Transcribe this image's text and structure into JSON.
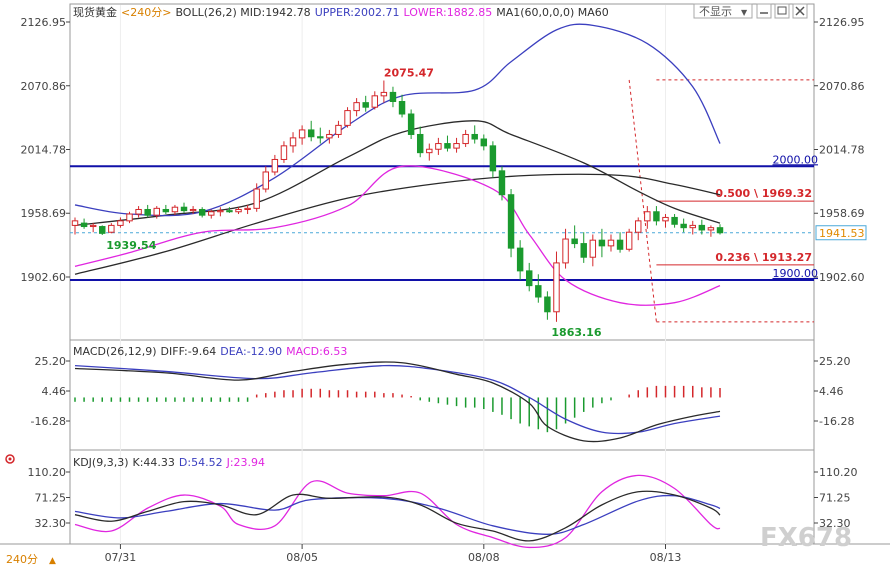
{
  "colors": {
    "up": "#d4272b",
    "down": "#1a9a2e",
    "upper": "#3b3fbf",
    "mid": "#2a2a2a",
    "lower": "#e026e0",
    "ma": "#2a2a2a",
    "level": "#1010a8",
    "axis": "#444444",
    "cur": "#4aa8d8",
    "fib": "#d4272b",
    "dif": "#2a2a2a",
    "dea": "#3b3fbf",
    "k": "#2a2a2a",
    "d": "#3b3fbf",
    "j": "#e026e0"
  },
  "header": {
    "main": [
      {
        "t": "现货黄金",
        "c": "#333333"
      },
      {
        "t": "<240分>",
        "c": "#d88000"
      },
      {
        "t": "BOLL(26,2) MID:1942.78",
        "c": "#333333"
      },
      {
        "t": "UPPER:2002.71",
        "c": "#3b3fbf"
      },
      {
        "t": "LOWER:1882.85",
        "c": "#e026e0"
      },
      {
        "t": "MA1(60,0,0,0) MA60",
        "c": "#333333"
      }
    ],
    "macd": [
      {
        "t": "MACD(26,12,9)",
        "c": "#333333"
      },
      {
        "t": "DIFF:-9.64",
        "c": "#333333"
      },
      {
        "t": "DEA:-12.90",
        "c": "#3b3fbf"
      },
      {
        "t": "MACD:6.53",
        "c": "#e026e0"
      }
    ],
    "kdj": [
      {
        "t": "KDJ(9,3,3)",
        "c": "#333333"
      },
      {
        "t": "K:44.33",
        "c": "#333333"
      },
      {
        "t": "D:54.52",
        "c": "#3b3fbf"
      },
      {
        "t": "J:23.94",
        "c": "#e026e0"
      }
    ]
  },
  "toolbar": {
    "hide_label": "不显示"
  },
  "footer": {
    "period_label": "240分"
  },
  "watermark": "FX678",
  "chart_data": [
    {
      "panel": "main",
      "type": "candlestick",
      "y_ticks": [
        2126.95,
        2070.86,
        2014.78,
        1958.69,
        1902.6
      ],
      "x_labels": [
        {
          "label": "07/31",
          "i": 5
        },
        {
          "label": "08/05",
          "i": 25
        },
        {
          "label": "08/08",
          "i": 45
        },
        {
          "label": "08/13",
          "i": 65
        }
      ],
      "ohlc": [
        [
          1948,
          1955,
          1940,
          1952
        ],
        [
          1950,
          1954,
          1945,
          1947
        ],
        [
          1947,
          1950,
          1942,
          1948
        ],
        [
          1947,
          1948,
          1939.54,
          1941
        ],
        [
          1942,
          1950,
          1941,
          1948
        ],
        [
          1948,
          1955,
          1946,
          1952
        ],
        [
          1952,
          1960,
          1950,
          1958
        ],
        [
          1958,
          1965,
          1955,
          1962
        ],
        [
          1962,
          1966,
          1955,
          1957
        ],
        [
          1957,
          1965,
          1954,
          1963
        ],
        [
          1962,
          1966,
          1958,
          1960
        ],
        [
          1960,
          1966,
          1957,
          1964
        ],
        [
          1964,
          1968,
          1959,
          1961
        ],
        [
          1961,
          1965,
          1958,
          1962
        ],
        [
          1962,
          1964,
          1955,
          1957
        ],
        [
          1957,
          1962,
          1954,
          1960
        ],
        [
          1960,
          1964,
          1956,
          1961
        ],
        [
          1961,
          1964,
          1959,
          1960
        ],
        [
          1960,
          1964,
          1958,
          1962
        ],
        [
          1962,
          1966,
          1958,
          1963
        ],
        [
          1963,
          1985,
          1960,
          1980
        ],
        [
          1980,
          2000,
          1977,
          1995
        ],
        [
          1995,
          2010,
          1992,
          2006
        ],
        [
          2006,
          2022,
          2003,
          2018
        ],
        [
          2018,
          2030,
          2012,
          2025
        ],
        [
          2025,
          2036,
          2019,
          2032
        ],
        [
          2032,
          2040,
          2022,
          2026
        ],
        [
          2026,
          2034,
          2020,
          2025
        ],
        [
          2025,
          2032,
          2020,
          2028
        ],
        [
          2028,
          2040,
          2025,
          2036
        ],
        [
          2036,
          2052,
          2034,
          2049
        ],
        [
          2049,
          2060,
          2044,
          2056
        ],
        [
          2056,
          2062,
          2048,
          2052
        ],
        [
          2052,
          2066,
          2050,
          2062
        ],
        [
          2062,
          2075.47,
          2056,
          2065
        ],
        [
          2065,
          2070,
          2052,
          2057
        ],
        [
          2057,
          2063,
          2043,
          2046
        ],
        [
          2046,
          2050,
          2024,
          2028
        ],
        [
          2028,
          2035,
          2008,
          2012
        ],
        [
          2012,
          2020,
          2005,
          2015
        ],
        [
          2015,
          2025,
          2010,
          2020
        ],
        [
          2020,
          2027,
          2013,
          2016
        ],
        [
          2016,
          2025,
          2012,
          2020
        ],
        [
          2020,
          2032,
          2017,
          2028
        ],
        [
          2028,
          2036,
          2020,
          2024
        ],
        [
          2024,
          2028,
          2014,
          2018
        ],
        [
          2018,
          2022,
          1990,
          1996
        ],
        [
          1996,
          2000,
          1970,
          1975
        ],
        [
          1975,
          1980,
          1920,
          1928
        ],
        [
          1928,
          1935,
          1900,
          1908
        ],
        [
          1908,
          1915,
          1890,
          1895
        ],
        [
          1895,
          1905,
          1880,
          1885
        ],
        [
          1885,
          1890,
          1865,
          1872
        ],
        [
          1872,
          1925,
          1863.16,
          1915
        ],
        [
          1915,
          1945,
          1910,
          1936
        ],
        [
          1936,
          1948,
          1928,
          1932
        ],
        [
          1932,
          1942,
          1915,
          1920
        ],
        [
          1920,
          1940,
          1912,
          1935
        ],
        [
          1935,
          1945,
          1920,
          1930
        ],
        [
          1930,
          1940,
          1925,
          1935
        ],
        [
          1935,
          1942,
          1924,
          1927
        ],
        [
          1927,
          1945,
          1925,
          1942
        ],
        [
          1942,
          1955,
          1935,
          1952
        ],
        [
          1952,
          1965,
          1945,
          1960
        ],
        [
          1960,
          1965,
          1948,
          1952
        ],
        [
          1952,
          1958,
          1946,
          1955
        ],
        [
          1955,
          1958,
          1946,
          1949
        ],
        [
          1949,
          1954,
          1942,
          1946
        ],
        [
          1946,
          1952,
          1940,
          1948
        ],
        [
          1948,
          1953,
          1940,
          1944
        ],
        [
          1944,
          1948,
          1938,
          1946
        ],
        [
          1946,
          1949,
          1940,
          1941.53
        ]
      ],
      "boll_upper": [
        [
          0,
          1966
        ],
        [
          6,
          1958
        ],
        [
          14,
          1960
        ],
        [
          22,
          1990
        ],
        [
          30,
          2036
        ],
        [
          36,
          2062
        ],
        [
          44,
          2067
        ],
        [
          48,
          2092
        ],
        [
          53,
          2120
        ],
        [
          57,
          2124
        ],
        [
          63,
          2108
        ],
        [
          68,
          2070
        ],
        [
          71,
          2020
        ]
      ],
      "boll_mid": [
        [
          0,
          1948
        ],
        [
          10,
          1957
        ],
        [
          20,
          1968
        ],
        [
          30,
          2008
        ],
        [
          36,
          2030
        ],
        [
          44,
          2040
        ],
        [
          48,
          2028
        ],
        [
          56,
          2003
        ],
        [
          62,
          1978
        ],
        [
          66,
          1963
        ],
        [
          71,
          1950
        ]
      ],
      "boll_lower": [
        [
          0,
          1912
        ],
        [
          6,
          1924
        ],
        [
          14,
          1942
        ],
        [
          22,
          1946
        ],
        [
          30,
          1965
        ],
        [
          36,
          2000
        ],
        [
          46,
          1980
        ],
        [
          50,
          1940
        ],
        [
          54,
          1900
        ],
        [
          60,
          1880
        ],
        [
          66,
          1880
        ],
        [
          71,
          1895
        ]
      ],
      "ma60": [
        [
          0,
          1905
        ],
        [
          10,
          1925
        ],
        [
          20,
          1950
        ],
        [
          30,
          1972
        ],
        [
          40,
          1985
        ],
        [
          50,
          1992
        ],
        [
          60,
          1992
        ],
        [
          66,
          1984
        ],
        [
          71,
          1975
        ]
      ],
      "levels": [
        {
          "value": 2000.0,
          "label": "2000.00"
        },
        {
          "value": 1900.0,
          "label": "1900.00"
        }
      ],
      "fib": [
        {
          "value": 1969.32,
          "label": "0.500 \\ 1969.32"
        },
        {
          "value": 1913.27,
          "label": "0.236 \\ 1913.27"
        }
      ],
      "dashed": [
        {
          "from": [
            64,
            2076
          ],
          "to": [
            71,
            2076
          ]
        },
        {
          "from": [
            64,
            1863.16
          ],
          "to": [
            71,
            1863.16
          ]
        }
      ],
      "trend_line": {
        "from": [
          61,
          2076
        ],
        "to": [
          64,
          1863.16
        ]
      },
      "current": {
        "value": 1941.53,
        "label": "1941.53"
      },
      "annotations": [
        {
          "i": 34,
          "value": 2075.47,
          "label": "2075.47",
          "color": "#d4272b"
        },
        {
          "i": 3,
          "value": 1939.54,
          "label": "1939.54",
          "color": "#1a9a2e"
        },
        {
          "i": 52,
          "value": 1863.16,
          "label": "1863.16",
          "color": "#1a9a2e"
        }
      ]
    },
    {
      "panel": "macd",
      "type": "line+bar",
      "y_ticks": [
        25.2,
        4.46,
        -16.28
      ],
      "dif": [
        [
          0,
          20
        ],
        [
          10,
          17
        ],
        [
          18,
          12
        ],
        [
          24,
          18
        ],
        [
          30,
          23
        ],
        [
          36,
          24
        ],
        [
          42,
          16
        ],
        [
          46,
          10
        ],
        [
          50,
          -4
        ],
        [
          52,
          -20
        ],
        [
          56,
          -30
        ],
        [
          60,
          -28
        ],
        [
          64,
          -19
        ],
        [
          68,
          -13
        ],
        [
          71,
          -9.64
        ]
      ],
      "dea": [
        [
          0,
          22
        ],
        [
          10,
          18
        ],
        [
          20,
          13
        ],
        [
          26,
          17
        ],
        [
          34,
          22
        ],
        [
          40,
          19
        ],
        [
          46,
          12
        ],
        [
          50,
          0
        ],
        [
          54,
          -15
        ],
        [
          58,
          -24
        ],
        [
          62,
          -24
        ],
        [
          66,
          -18
        ],
        [
          71,
          -12.9
        ]
      ],
      "hist": [
        -3,
        -3,
        -3,
        -3,
        -3,
        -3,
        -3,
        -3,
        -3,
        -3,
        -3,
        -3,
        -3,
        -3,
        -3,
        -3,
        -3,
        -3,
        -3,
        -3,
        2,
        3,
        4,
        5,
        5,
        6,
        6,
        6,
        5,
        5,
        5,
        4,
        4,
        4,
        3,
        3,
        2,
        1,
        -2,
        -3,
        -4,
        -5,
        -6,
        -7,
        -7,
        -8,
        -10,
        -12,
        -15,
        -18,
        -20,
        -22,
        -24,
        -22,
        -18,
        -14,
        -10,
        -7,
        -4,
        -2,
        0,
        2,
        5,
        7,
        8,
        8,
        8,
        8,
        8,
        7,
        7,
        6.53
      ]
    },
    {
      "panel": "kdj",
      "type": "line",
      "y_ticks": [
        110.2,
        71.25,
        32.3
      ],
      "k": [
        [
          0,
          45
        ],
        [
          4,
          35
        ],
        [
          8,
          50
        ],
        [
          12,
          65
        ],
        [
          16,
          60
        ],
        [
          20,
          45
        ],
        [
          24,
          75
        ],
        [
          28,
          70
        ],
        [
          34,
          72
        ],
        [
          38,
          60
        ],
        [
          42,
          32
        ],
        [
          46,
          20
        ],
        [
          50,
          5
        ],
        [
          54,
          25
        ],
        [
          58,
          60
        ],
        [
          62,
          80
        ],
        [
          66,
          75
        ],
        [
          70,
          55
        ],
        [
          71,
          44.33
        ]
      ],
      "d": [
        [
          0,
          50
        ],
        [
          5,
          40
        ],
        [
          10,
          50
        ],
        [
          16,
          62
        ],
        [
          22,
          52
        ],
        [
          26,
          68
        ],
        [
          34,
          70
        ],
        [
          40,
          55
        ],
        [
          46,
          28
        ],
        [
          52,
          15
        ],
        [
          56,
          30
        ],
        [
          62,
          66
        ],
        [
          66,
          74
        ],
        [
          70,
          60
        ],
        [
          71,
          54.52
        ]
      ],
      "j": [
        [
          0,
          30
        ],
        [
          4,
          20
        ],
        [
          8,
          55
        ],
        [
          12,
          75
        ],
        [
          16,
          58
        ],
        [
          18,
          30
        ],
        [
          22,
          28
        ],
        [
          26,
          95
        ],
        [
          30,
          78
        ],
        [
          34,
          74
        ],
        [
          38,
          78
        ],
        [
          42,
          30
        ],
        [
          46,
          10
        ],
        [
          50,
          -5
        ],
        [
          54,
          10
        ],
        [
          58,
          80
        ],
        [
          62,
          105
        ],
        [
          66,
          85
        ],
        [
          70,
          30
        ],
        [
          71,
          23.94
        ]
      ]
    }
  ]
}
